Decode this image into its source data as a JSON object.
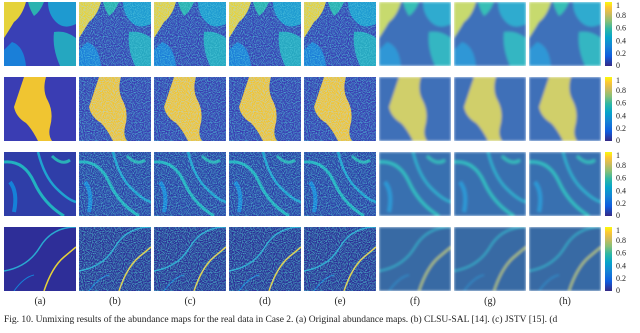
{
  "figure": {
    "panel_labels": [
      "(a)",
      "(b)",
      "(c)",
      "(d)",
      "(e)",
      "(f)",
      "(g)",
      "(h)"
    ],
    "colorbar_ticks": [
      0,
      0.2,
      0.4,
      0.6,
      0.8,
      1
    ],
    "caption": "Fig. 10.   Unmixing results of the abundance maps for the real data in Case 2. (a) Original abundance maps. (b) CLSU-SAL [14]. (c) JSTV [15]. (d"
  }
}
